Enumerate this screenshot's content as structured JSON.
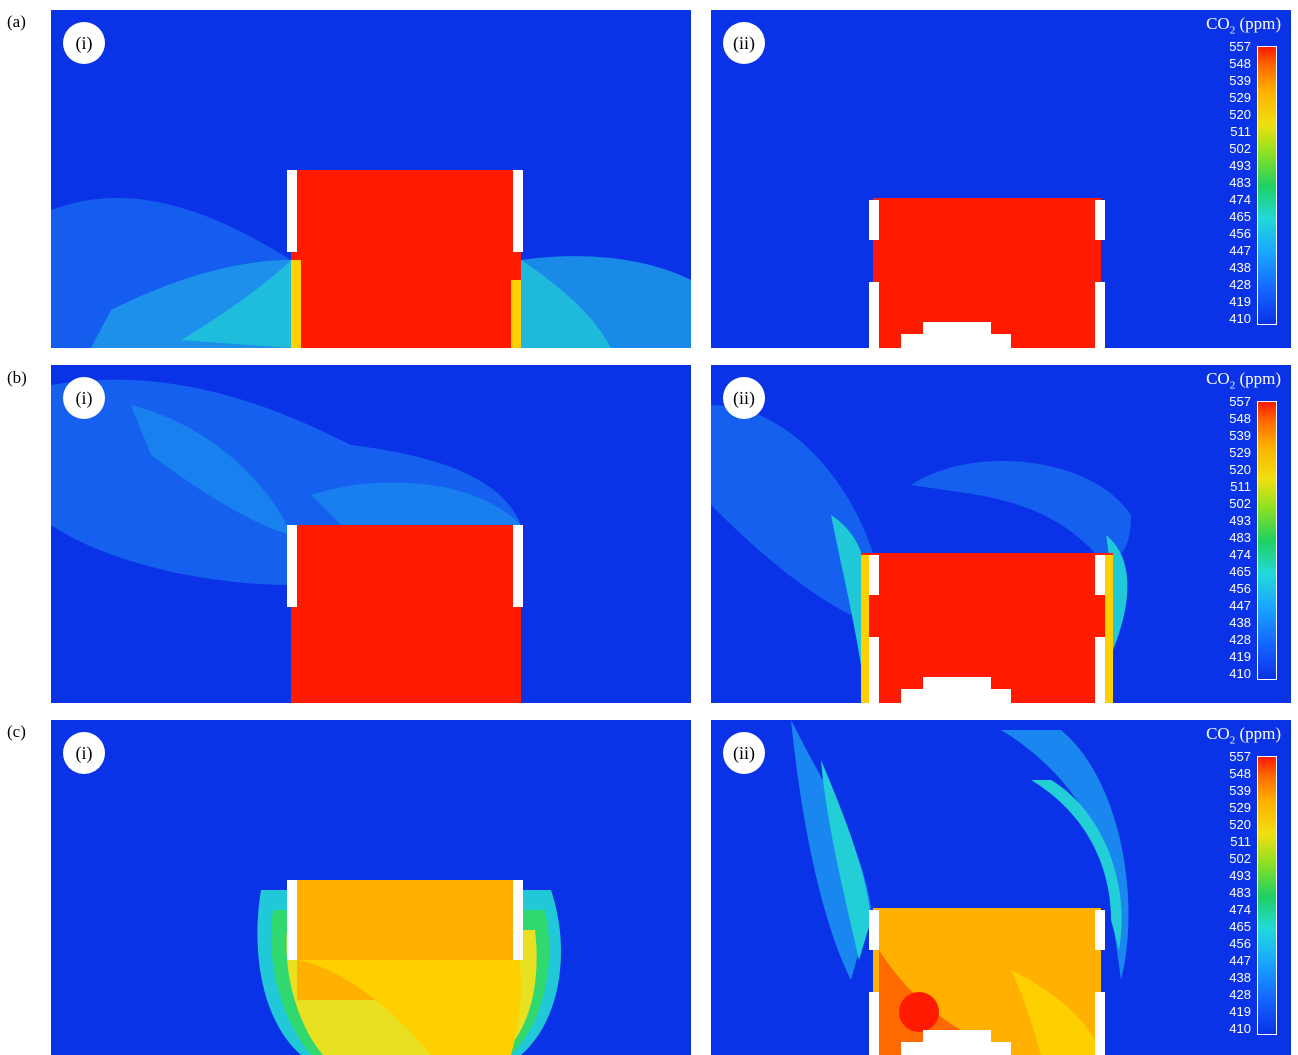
{
  "rows": [
    {
      "id": "a",
      "label": "(a)"
    },
    {
      "id": "b",
      "label": "(b)"
    },
    {
      "id": "c",
      "label": "(c)"
    }
  ],
  "panel_labels": {
    "left": "(i)",
    "right": "(ii)"
  },
  "colorbar": {
    "title_main": "CO",
    "title_sub": "2",
    "title_unit": " (ppm)",
    "ticks": [
      "557",
      "548",
      "539",
      "529",
      "520",
      "511",
      "502",
      "493",
      "483",
      "474",
      "465",
      "456",
      "447",
      "438",
      "428",
      "419",
      "410"
    ],
    "colors": {
      "background": "#0a32e6",
      "high": "#ff1a00",
      "mid": "#20d060",
      "low": "#0a32e6"
    }
  }
}
